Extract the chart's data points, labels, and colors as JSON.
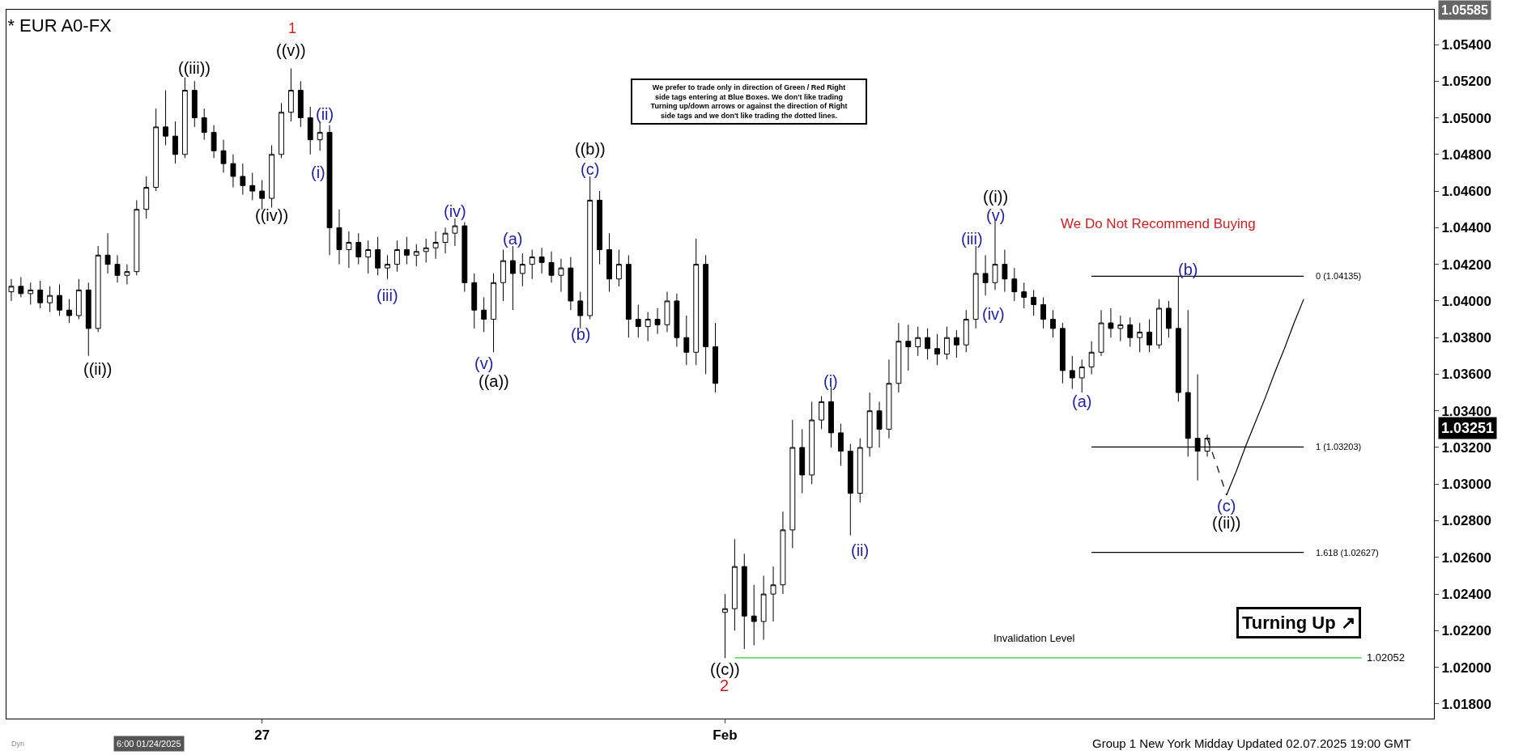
{
  "chart_data": {
    "type": "candlestick",
    "title": "* EUR A0-FX",
    "categories": [
      null,
      null,
      null,
      null,
      null,
      null,
      null,
      null,
      null,
      null,
      null,
      null,
      null,
      null,
      null,
      null,
      null,
      null,
      null,
      null,
      null,
      null,
      null,
      null,
      null,
      null,
      "27",
      null,
      null,
      null,
      null,
      null,
      null,
      null,
      null,
      null,
      null,
      null,
      null,
      null,
      null,
      null,
      null,
      null,
      null,
      null,
      null,
      null,
      null,
      null,
      null,
      null,
      null,
      null,
      null,
      null,
      null,
      null,
      null,
      null,
      null,
      null,
      null,
      null,
      null,
      null,
      null,
      null,
      null,
      null,
      null,
      null,
      null,
      null,
      "Feb",
      null,
      null,
      null,
      null,
      null,
      null,
      null,
      null,
      null,
      null,
      null,
      null,
      null,
      null,
      null,
      null,
      null,
      null,
      null,
      null,
      null,
      null,
      null,
      null,
      null,
      null,
      null,
      null,
      null,
      null,
      null,
      null,
      null,
      null,
      null,
      null,
      null,
      null,
      null,
      null,
      null,
      null,
      null,
      null,
      null,
      null,
      null,
      null,
      null,
      null,
      null,
      null,
      null,
      null,
      null,
      null,
      null,
      null,
      null,
      null,
      null,
      null,
      null,
      null,
      null,
      null,
      null,
      null,
      null,
      null,
      null,
      null,
      null
    ],
    "ohlc": [
      [
        1.0405,
        1.0412,
        1.04,
        1.0408
      ],
      [
        1.0408,
        1.0413,
        1.0402,
        1.0404
      ],
      [
        1.0404,
        1.041,
        1.0398,
        1.0406
      ],
      [
        1.0406,
        1.0411,
        1.0396,
        1.0399
      ],
      [
        1.0399,
        1.0408,
        1.0394,
        1.0403
      ],
      [
        1.0403,
        1.0409,
        1.0392,
        1.0395
      ],
      [
        1.0395,
        1.0401,
        1.0388,
        1.0392
      ],
      [
        1.0392,
        1.0412,
        1.039,
        1.0406
      ],
      [
        1.0406,
        1.041,
        1.037,
        1.0385
      ],
      [
        1.0385,
        1.043,
        1.0383,
        1.0425
      ],
      [
        1.0425,
        1.0437,
        1.0415,
        1.042
      ],
      [
        1.042,
        1.0425,
        1.041,
        1.0414
      ],
      [
        1.0414,
        1.042,
        1.0409,
        1.0416
      ],
      [
        1.0416,
        1.0455,
        1.0414,
        1.045
      ],
      [
        1.045,
        1.0468,
        1.0445,
        1.0462
      ],
      [
        1.0462,
        1.0505,
        1.046,
        1.0495
      ],
      [
        1.0495,
        1.0515,
        1.0485,
        1.049
      ],
      [
        1.049,
        1.0498,
        1.0475,
        1.048
      ],
      [
        1.048,
        1.0522,
        1.0478,
        1.0515
      ],
      [
        1.0515,
        1.052,
        1.0495,
        1.05
      ],
      [
        1.05,
        1.0505,
        1.0488,
        1.0492
      ],
      [
        1.0492,
        1.0496,
        1.0478,
        1.0482
      ],
      [
        1.0482,
        1.0488,
        1.047,
        1.0475
      ],
      [
        1.0475,
        1.048,
        1.0462,
        1.0468
      ],
      [
        1.0468,
        1.0475,
        1.0458,
        1.0463
      ],
      [
        1.0463,
        1.047,
        1.0455,
        1.046
      ],
      [
        1.046,
        1.0466,
        1.045,
        1.0456
      ],
      [
        1.0456,
        1.0485,
        1.0451,
        1.048
      ],
      [
        1.048,
        1.0508,
        1.0478,
        1.0503
      ],
      [
        1.0503,
        1.0527,
        1.0498,
        1.0515
      ],
      [
        1.0515,
        1.052,
        1.0495,
        1.05
      ],
      [
        1.05,
        1.0506,
        1.048,
        1.0488
      ],
      [
        1.0488,
        1.0498,
        1.0482,
        1.0492
      ],
      [
        1.0492,
        1.0496,
        1.0425,
        1.044
      ],
      [
        1.044,
        1.045,
        1.042,
        1.0428
      ],
      [
        1.0428,
        1.0438,
        1.0418,
        1.0432
      ],
      [
        1.0432,
        1.0437,
        1.042,
        1.0424
      ],
      [
        1.0424,
        1.0433,
        1.0415,
        1.0428
      ],
      [
        1.0428,
        1.0435,
        1.0414,
        1.0418
      ],
      [
        1.0418,
        1.0425,
        1.0412,
        1.042
      ],
      [
        1.042,
        1.0433,
        1.0416,
        1.0428
      ],
      [
        1.0428,
        1.0435,
        1.042,
        1.0425
      ],
      [
        1.0425,
        1.0431,
        1.0419,
        1.0427
      ],
      [
        1.0427,
        1.0434,
        1.0421,
        1.0429
      ],
      [
        1.0429,
        1.0438,
        1.0423,
        1.0432
      ],
      [
        1.0432,
        1.044,
        1.0426,
        1.0437
      ],
      [
        1.0437,
        1.0445,
        1.043,
        1.0441
      ],
      [
        1.0441,
        1.0443,
        1.0405,
        1.041
      ],
      [
        1.041,
        1.0415,
        1.0385,
        1.0395
      ],
      [
        1.0395,
        1.0402,
        1.0383,
        1.039
      ],
      [
        1.039,
        1.0415,
        1.0372,
        1.041
      ],
      [
        1.041,
        1.0428,
        1.04,
        1.0422
      ],
      [
        1.0422,
        1.043,
        1.0395,
        1.0415
      ],
      [
        1.0415,
        1.0426,
        1.0408,
        1.042
      ],
      [
        1.042,
        1.0428,
        1.0412,
        1.0424
      ],
      [
        1.0424,
        1.0429,
        1.0415,
        1.0421
      ],
      [
        1.0421,
        1.0427,
        1.041,
        1.0414
      ],
      [
        1.0414,
        1.0423,
        1.0405,
        1.0418
      ],
      [
        1.0418,
        1.0424,
        1.0395,
        1.04
      ],
      [
        1.04,
        1.0405,
        1.0385,
        1.0392
      ],
      [
        1.0392,
        1.0468,
        1.039,
        1.0455
      ],
      [
        1.0455,
        1.046,
        1.042,
        1.0428
      ],
      [
        1.0428,
        1.0437,
        1.0405,
        1.0412
      ],
      [
        1.0412,
        1.0428,
        1.0408,
        1.042
      ],
      [
        1.042,
        1.0425,
        1.038,
        1.039
      ],
      [
        1.039,
        1.0398,
        1.038,
        1.0386
      ],
      [
        1.0386,
        1.0394,
        1.0378,
        1.039
      ],
      [
        1.039,
        1.0396,
        1.0382,
        1.0387
      ],
      [
        1.0387,
        1.0405,
        1.0383,
        1.04
      ],
      [
        1.04,
        1.0404,
        1.0375,
        1.038
      ],
      [
        1.038,
        1.0392,
        1.0365,
        1.0372
      ],
      [
        1.0372,
        1.0434,
        1.0365,
        1.042
      ],
      [
        1.042,
        1.0425,
        1.036,
        1.0375
      ],
      [
        1.0375,
        1.0388,
        1.035,
        1.0355
      ],
      [
        1.023,
        1.024,
        1.0205,
        1.0232
      ],
      [
        1.0232,
        1.027,
        1.022,
        1.0255
      ],
      [
        1.0255,
        1.0262,
        1.021,
        1.0228
      ],
      [
        1.0228,
        1.0245,
        1.0212,
        1.0225
      ],
      [
        1.0225,
        1.025,
        1.0215,
        1.024
      ],
      [
        1.024,
        1.0255,
        1.0225,
        1.0245
      ],
      [
        1.0245,
        1.0285,
        1.024,
        1.0275
      ],
      [
        1.0275,
        1.0335,
        1.0265,
        1.032
      ],
      [
        1.032,
        1.033,
        1.0295,
        1.0305
      ],
      [
        1.0305,
        1.0345,
        1.03,
        1.0335
      ],
      [
        1.0335,
        1.0348,
        1.033,
        1.0345
      ],
      [
        1.0345,
        1.0353,
        1.032,
        1.0328
      ],
      [
        1.0328,
        1.0333,
        1.031,
        1.0318
      ],
      [
        1.0318,
        1.0322,
        1.0272,
        1.0295
      ],
      [
        1.0295,
        1.0325,
        1.029,
        1.032
      ],
      [
        1.032,
        1.035,
        1.0315,
        1.034
      ],
      [
        1.034,
        1.0345,
        1.032,
        1.033
      ],
      [
        1.033,
        1.0368,
        1.0325,
        1.0355
      ],
      [
        1.0355,
        1.0388,
        1.035,
        1.0378
      ],
      [
        1.0378,
        1.0387,
        1.0362,
        1.0375
      ],
      [
        1.0375,
        1.0386,
        1.037,
        1.038
      ],
      [
        1.038,
        1.0385,
        1.0368,
        1.0374
      ],
      [
        1.0374,
        1.0382,
        1.0365,
        1.0371
      ],
      [
        1.0371,
        1.0386,
        1.0368,
        1.038
      ],
      [
        1.038,
        1.0384,
        1.0369,
        1.0376
      ],
      [
        1.0376,
        1.0395,
        1.0372,
        1.039
      ],
      [
        1.039,
        1.043,
        1.0385,
        1.0415
      ],
      [
        1.0415,
        1.0425,
        1.0403,
        1.041
      ],
      [
        1.041,
        1.0444,
        1.0406,
        1.042
      ],
      [
        1.042,
        1.0428,
        1.0405,
        1.0412
      ],
      [
        1.0412,
        1.0418,
        1.04,
        1.0405
      ],
      [
        1.0405,
        1.041,
        1.0396,
        1.0402
      ],
      [
        1.0402,
        1.0406,
        1.0392,
        1.0398
      ],
      [
        1.0398,
        1.0402,
        1.0385,
        1.039
      ],
      [
        1.039,
        1.0395,
        1.038,
        1.0385
      ],
      [
        1.0385,
        1.0388,
        1.0355,
        1.0362
      ],
      [
        1.0362,
        1.037,
        1.0352,
        1.0358
      ],
      [
        1.0358,
        1.0368,
        1.035,
        1.0364
      ],
      [
        1.0364,
        1.0378,
        1.036,
        1.0372
      ],
      [
        1.0372,
        1.0395,
        1.037,
        1.0388
      ],
      [
        1.0388,
        1.0396,
        1.038,
        1.0385
      ],
      [
        1.0385,
        1.0392,
        1.0378,
        1.0387
      ],
      [
        1.0387,
        1.0391,
        1.0375,
        1.038
      ],
      [
        1.038,
        1.0388,
        1.0372,
        1.0383
      ],
      [
        1.0383,
        1.039,
        1.0372,
        1.0376
      ],
      [
        1.0376,
        1.0401,
        1.0374,
        1.0396
      ],
      [
        1.0396,
        1.04,
        1.038,
        1.0385
      ],
      [
        1.0385,
        1.04135,
        1.0345,
        1.035
      ],
      [
        1.035,
        1.0395,
        1.0315,
        1.0325
      ],
      [
        1.0325,
        1.036,
        1.0302,
        1.0318
      ],
      [
        1.0318,
        1.0327,
        1.0315,
        1.03251
      ],
      null,
      null,
      null,
      null,
      null,
      null,
      null,
      null,
      null,
      null,
      null,
      null,
      null,
      null,
      null,
      null,
      null,
      null,
      null,
      null,
      null,
      null,
      null
    ],
    "color": "#000000",
    "series": [
      {
        "type": "line",
        "color": "#000000",
        "values": [
          null,
          null,
          null,
          null,
          null,
          null,
          null,
          null,
          null,
          null,
          null,
          null,
          null,
          null,
          null,
          null,
          null,
          null,
          null,
          null,
          null,
          null,
          null,
          null,
          null,
          null,
          null,
          null,
          null,
          null,
          null,
          null,
          null,
          null,
          null,
          null,
          null,
          null,
          null,
          null,
          null,
          null,
          null,
          null,
          null,
          null,
          null,
          null,
          null,
          null,
          null,
          null,
          null,
          null,
          null,
          null,
          null,
          null,
          null,
          null,
          null,
          null,
          null,
          null,
          null,
          null,
          null,
          null,
          null,
          null,
          null,
          null,
          null,
          null,
          null,
          null,
          null,
          null,
          null,
          null,
          null,
          null,
          null,
          null,
          null,
          null,
          null,
          null,
          null,
          null,
          null,
          null,
          null,
          null,
          null,
          null,
          null,
          null,
          null,
          null,
          null,
          null,
          null,
          null,
          null,
          null,
          null,
          null,
          null,
          null,
          null,
          null,
          1.04135,
          1.04135,
          1.04135,
          1.04135,
          1.04135,
          1.04135,
          1.04135,
          1.04135,
          1.04135,
          1.04135,
          1.04135,
          1.04135,
          1.04135,
          1.04135,
          1.04135,
          1.04135,
          1.04135,
          1.04135,
          1.04135,
          1.04135,
          1.04135,
          1.04135,
          1.04135,
          null,
          null,
          null,
          null,
          null,
          null,
          null,
          null,
          null,
          null,
          null,
          null,
          null
        ]
      },
      {
        "type": "line",
        "color": "#000000",
        "values": [
          null,
          null,
          null,
          null,
          null,
          null,
          null,
          null,
          null,
          null,
          null,
          null,
          null,
          null,
          null,
          null,
          null,
          null,
          null,
          null,
          null,
          null,
          null,
          null,
          null,
          null,
          null,
          null,
          null,
          null,
          null,
          null,
          null,
          null,
          null,
          null,
          null,
          null,
          null,
          null,
          null,
          null,
          null,
          null,
          null,
          null,
          null,
          null,
          null,
          null,
          null,
          null,
          null,
          null,
          null,
          null,
          null,
          null,
          null,
          null,
          null,
          null,
          null,
          null,
          null,
          null,
          null,
          null,
          null,
          null,
          null,
          null,
          null,
          null,
          null,
          null,
          null,
          null,
          null,
          null,
          null,
          null,
          null,
          null,
          null,
          null,
          null,
          null,
          null,
          null,
          null,
          null,
          null,
          null,
          null,
          null,
          null,
          null,
          null,
          null,
          null,
          null,
          null,
          null,
          null,
          null,
          null,
          null,
          null,
          null,
          null,
          null,
          1.03203,
          1.03203,
          1.03203,
          1.03203,
          1.03203,
          1.03203,
          1.03203,
          1.03203,
          1.03203,
          1.03203,
          1.03203,
          1.03203,
          1.03203,
          1.03203,
          1.03203,
          1.03203,
          1.03203,
          1.03203,
          1.03203,
          1.03203,
          1.03203,
          1.03203,
          1.03203,
          null,
          null,
          null,
          null,
          null,
          null,
          null,
          null,
          null,
          null,
          null,
          null,
          null
        ]
      },
      {
        "type": "line",
        "color": "#000000",
        "values": [
          null,
          null,
          null,
          null,
          null,
          null,
          null,
          null,
          null,
          null,
          null,
          null,
          null,
          null,
          null,
          null,
          null,
          null,
          null,
          null,
          null,
          null,
          null,
          null,
          null,
          null,
          null,
          null,
          null,
          null,
          null,
          null,
          null,
          null,
          null,
          null,
          null,
          null,
          null,
          null,
          null,
          null,
          null,
          null,
          null,
          null,
          null,
          null,
          null,
          null,
          null,
          null,
          null,
          null,
          null,
          null,
          null,
          null,
          null,
          null,
          null,
          null,
          null,
          null,
          null,
          null,
          null,
          null,
          null,
          null,
          null,
          null,
          null,
          null,
          null,
          null,
          null,
          null,
          null,
          null,
          null,
          null,
          null,
          null,
          null,
          null,
          null,
          null,
          null,
          null,
          null,
          null,
          null,
          null,
          null,
          null,
          null,
          null,
          null,
          null,
          null,
          null,
          null,
          null,
          null,
          null,
          null,
          null,
          null,
          null,
          null,
          null,
          1.02627,
          1.02627,
          1.02627,
          1.02627,
          1.02627,
          1.02627,
          1.02627,
          1.02627,
          1.02627,
          1.02627,
          1.02627,
          1.02627,
          1.02627,
          1.02627,
          1.02627,
          1.02627,
          1.02627,
          1.02627,
          1.02627,
          1.02627,
          1.02627,
          1.02627,
          1.02627,
          null,
          null,
          null,
          null,
          null,
          null,
          null,
          null,
          null,
          null,
          null,
          null,
          null
        ]
      },
      {
        "type": "line",
        "color": "#33cc33",
        "values": [
          null,
          null,
          null,
          null,
          null,
          null,
          null,
          null,
          null,
          null,
          null,
          null,
          null,
          null,
          null,
          null,
          null,
          null,
          null,
          null,
          null,
          null,
          null,
          null,
          null,
          null,
          null,
          null,
          null,
          null,
          null,
          null,
          null,
          null,
          null,
          null,
          null,
          null,
          null,
          null,
          null,
          null,
          null,
          null,
          null,
          null,
          null,
          null,
          null,
          null,
          null,
          null,
          null,
          null,
          null,
          null,
          null,
          null,
          null,
          null,
          null,
          null,
          null,
          null,
          null,
          null,
          null,
          null,
          null,
          null,
          null,
          null,
          null,
          null,
          null,
          1.02052,
          1.02052,
          1.02052,
          1.02052,
          1.02052,
          1.02052,
          1.02052,
          1.02052,
          1.02052,
          1.02052,
          1.02052,
          1.02052,
          1.02052,
          1.02052,
          1.02052,
          1.02052,
          1.02052,
          1.02052,
          1.02052,
          1.02052,
          1.02052,
          1.02052,
          1.02052,
          1.02052,
          1.02052,
          1.02052,
          1.02052,
          1.02052,
          1.02052,
          1.02052,
          1.02052,
          1.02052,
          1.02052,
          1.02052,
          1.02052,
          1.02052,
          1.02052,
          1.02052,
          1.02052,
          1.02052,
          1.02052,
          1.02052,
          1.02052,
          1.02052,
          1.02052,
          1.02052,
          1.02052,
          1.02052,
          1.02052,
          1.02052,
          1.02052,
          1.02052,
          1.02052,
          1.02052,
          1.02052,
          1.02052,
          1.02052,
          1.02052,
          1.02052,
          1.02052,
          1.02052,
          1.02052,
          1.02052,
          1.02052,
          1.02052,
          1.02052,
          null,
          null,
          null,
          null,
          null,
          null,
          null
        ]
      },
      {
        "type": "line",
        "color": "#000000",
        "line_style": "dashed",
        "values": [
          null,
          null,
          null,
          null,
          null,
          null,
          null,
          null,
          null,
          null,
          null,
          null,
          null,
          null,
          null,
          null,
          null,
          null,
          null,
          null,
          null,
          null,
          null,
          null,
          null,
          null,
          null,
          null,
          null,
          null,
          null,
          null,
          null,
          null,
          null,
          null,
          null,
          null,
          null,
          null,
          null,
          null,
          null,
          null,
          null,
          null,
          null,
          null,
          null,
          null,
          null,
          null,
          null,
          null,
          null,
          null,
          null,
          null,
          null,
          null,
          null,
          null,
          null,
          null,
          null,
          null,
          null,
          null,
          null,
          null,
          null,
          null,
          null,
          null,
          null,
          null,
          null,
          null,
          null,
          null,
          null,
          null,
          null,
          null,
          null,
          null,
          null,
          null,
          null,
          null,
          null,
          null,
          null,
          null,
          null,
          null,
          null,
          null,
          null,
          null,
          null,
          null,
          null,
          null,
          null,
          null,
          null,
          null,
          null,
          null,
          null,
          null,
          null,
          null,
          null,
          null,
          null,
          null,
          null,
          null,
          null,
          null,
          null,
          null,
          1.0325,
          1.031,
          1.0294,
          null,
          null,
          null,
          null,
          null,
          null,
          null,
          null,
          null,
          null,
          null,
          null,
          null,
          null,
          null,
          null,
          null,
          null,
          null,
          null,
          null
        ]
      },
      {
        "type": "line",
        "color": "#000000",
        "line_style": "solid",
        "values": [
          null,
          null,
          null,
          null,
          null,
          null,
          null,
          null,
          null,
          null,
          null,
          null,
          null,
          null,
          null,
          null,
          null,
          null,
          null,
          null,
          null,
          null,
          null,
          null,
          null,
          null,
          null,
          null,
          null,
          null,
          null,
          null,
          null,
          null,
          null,
          null,
          null,
          null,
          null,
          null,
          null,
          null,
          null,
          null,
          null,
          null,
          null,
          null,
          null,
          null,
          null,
          null,
          null,
          null,
          null,
          null,
          null,
          null,
          null,
          null,
          null,
          null,
          null,
          null,
          null,
          null,
          null,
          null,
          null,
          null,
          null,
          null,
          null,
          null,
          null,
          null,
          null,
          null,
          null,
          null,
          null,
          null,
          null,
          null,
          null,
          null,
          null,
          null,
          null,
          null,
          null,
          null,
          null,
          null,
          null,
          null,
          null,
          null,
          null,
          null,
          null,
          null,
          null,
          null,
          null,
          null,
          null,
          null,
          null,
          null,
          null,
          null,
          null,
          null,
          null,
          null,
          null,
          null,
          null,
          null,
          null,
          null,
          null,
          null,
          null,
          null,
          1.0294,
          1.0307,
          1.0321,
          1.0334,
          1.0347,
          1.0361,
          1.0374,
          1.0388,
          1.0401,
          null,
          null,
          null,
          null,
          null,
          null,
          null,
          null,
          null,
          null,
          null,
          null,
          null
        ]
      }
    ],
    "ylim": [
      1.0172,
      1.0559
    ],
    "yticks": [
      {
        "value": 1.018,
        "label": "1.01800"
      },
      {
        "value": 1.02,
        "label": "1.02000"
      },
      {
        "value": 1.022,
        "label": "1.02200"
      },
      {
        "value": 1.024,
        "label": "1.02400"
      },
      {
        "value": 1.026,
        "label": "1.02600"
      },
      {
        "value": 1.028,
        "label": "1.02800"
      },
      {
        "value": 1.03,
        "label": "1.03000"
      },
      {
        "value": 1.032,
        "label": "1.03200"
      },
      {
        "value": 1.034,
        "label": "1.03400"
      },
      {
        "value": 1.036,
        "label": "1.03600"
      },
      {
        "value": 1.038,
        "label": "1.03800"
      },
      {
        "value": 1.04,
        "label": "1.04000"
      },
      {
        "value": 1.042,
        "label": "1.04200"
      },
      {
        "value": 1.044,
        "label": "1.04400"
      },
      {
        "value": 1.046,
        "label": "1.04600"
      },
      {
        "value": 1.048,
        "label": "1.04800"
      },
      {
        "value": 1.05,
        "label": "1.05000"
      },
      {
        "value": 1.052,
        "label": "1.05200"
      },
      {
        "value": 1.054,
        "label": "1.05400"
      }
    ],
    "annotations": [
      "We prefer to trade only in direction of Green / Red Right side tags entering at Blue Boxes. We don't like trading Turning up/down arrows or against the direction of Right side tags and we don't like trading the dotted lines.",
      "Turning Up ↗",
      "Group 1 New York Midday Updated 02.07.2025 19:00 GMT",
      "6:00 01/24/2025",
      "Dyn",
      "Invalidation Level",
      "1.05585",
      "1.03251",
      "We Do Not Recommend Buying",
      "1",
      "2",
      "0 (1.04135)",
      "1 (1.03203)",
      "1.618 (1.02627)",
      "1.02052",
      "((ii))",
      "((iii))",
      "((iv))",
      "((v))",
      "((a))",
      "((b))",
      "((c))",
      "((i))",
      "((ii))",
      "(i)",
      "(ii)",
      "(iii)",
      "(iv)",
      "(v)",
      "(a)",
      "(b)",
      "(c)",
      "(i)",
      "(ii)",
      "(iii)",
      "(iv)",
      "(v)",
      "(a)",
      "(b)",
      "(c)"
    ]
  }
}
